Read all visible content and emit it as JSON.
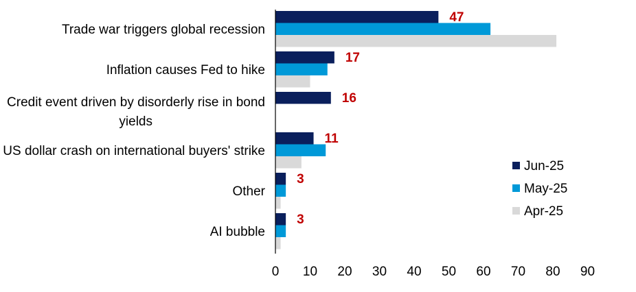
{
  "chart_data": {
    "type": "bar",
    "orientation": "horizontal",
    "categories": [
      [
        "Trade war triggers global recession"
      ],
      [
        "Inflation causes Fed to hike"
      ],
      [
        "Credit event driven by disorderly rise in bond",
        "yields"
      ],
      [
        "US dollar crash on international buyers' strike"
      ],
      [
        "Other"
      ],
      [
        "AI bubble"
      ]
    ],
    "series": [
      {
        "name": "Jun-25",
        "color": "#0a1f5c",
        "values": [
          47,
          17,
          16,
          11,
          3,
          3
        ]
      },
      {
        "name": "May-25",
        "color": "#0099d8",
        "values": [
          62,
          15,
          0,
          14.5,
          3,
          3
        ]
      },
      {
        "name": "Apr-25",
        "color": "#d9d9d9",
        "values": [
          81,
          10,
          0,
          7.5,
          1.5,
          1.5
        ]
      }
    ],
    "data_labels": [
      "47",
      "17",
      "16",
      "11",
      "3",
      "3"
    ],
    "xlim": [
      0,
      90
    ],
    "xticks": [
      0,
      10,
      20,
      30,
      40,
      50,
      60,
      70,
      80,
      90
    ],
    "grid": false,
    "legend_position": "right"
  }
}
